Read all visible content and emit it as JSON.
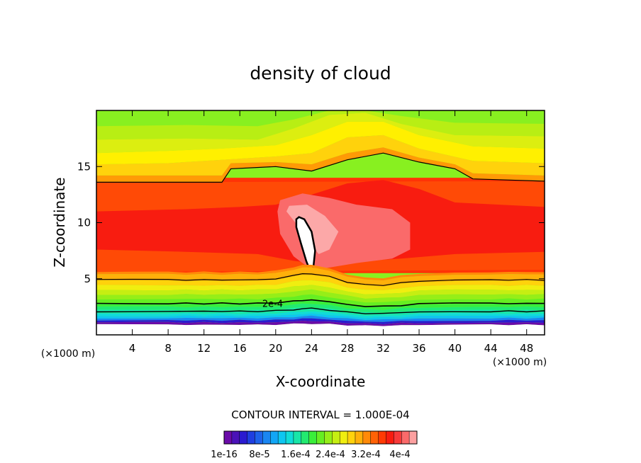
{
  "chart_data": {
    "type": "contour",
    "title": "density of cloud",
    "xlabel": "X-coordinate",
    "ylabel": "Z-coordinate",
    "x_unit": "(×1000 m)",
    "y_unit": "(×1000 m)",
    "xlim": [
      0,
      50
    ],
    "ylim": [
      0,
      20
    ],
    "x_ticks": [
      4,
      8,
      12,
      16,
      20,
      24,
      28,
      32,
      36,
      40,
      44,
      48
    ],
    "y_ticks": [
      5,
      10,
      15
    ],
    "contour_interval_text": "CONTOUR INTERVAL = 1.000E-04",
    "contour_label": "2e-4",
    "colorbar": {
      "labels": [
        "1e-16",
        "8e-5",
        "1.6e-4",
        "2.4e-4",
        "3.2e-4",
        "4e-4"
      ],
      "colors": [
        "#6a0ba8",
        "#4a12b8",
        "#2a1bd0",
        "#1f3fe0",
        "#1e62ea",
        "#1a86f2",
        "#12a6f5",
        "#0ec6f0",
        "#10dcd8",
        "#18e6a8",
        "#22ea70",
        "#3aee3a",
        "#66ee22",
        "#96ee18",
        "#c6ee12",
        "#f0ee10",
        "#ffd20c",
        "#ffb00a",
        "#ff8a08",
        "#ff6206",
        "#ff3a04",
        "#f81c10",
        "#f83a3a",
        "#fa6a6a",
        "#fca0a0"
      ]
    },
    "field_colors": {
      "top": "#88f020",
      "upper_mid": "#dcee10",
      "yellow": "#fff000",
      "orange": "#ff9a06",
      "red": "#ff3306",
      "mid_red": "#f81c10",
      "pink": "#fa6a6a",
      "light_pink": "#fca8a8",
      "core": "#ffffff"
    }
  }
}
